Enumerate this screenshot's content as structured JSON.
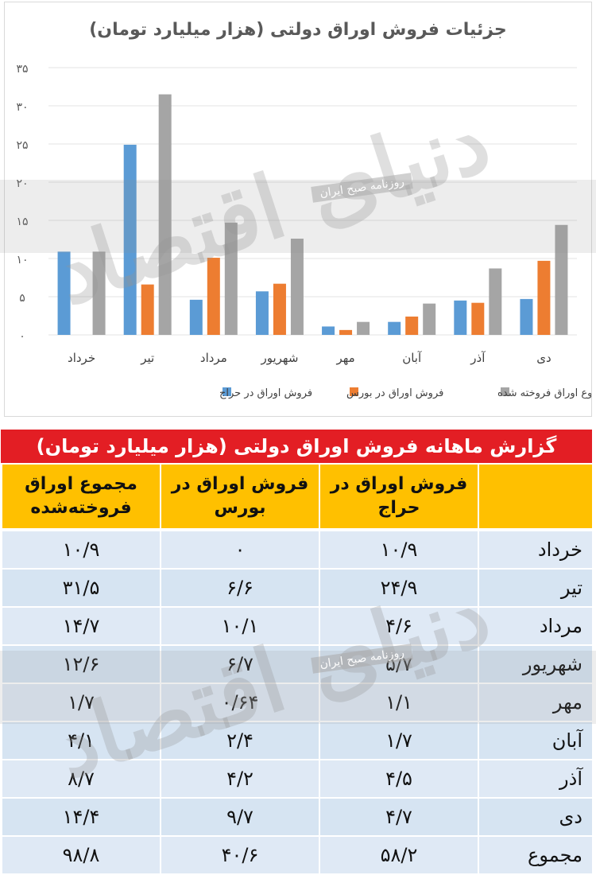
{
  "chart_data": {
    "type": "bar",
    "title": "جزئیات فروش اوراق دولتی  (هزار میلیارد تومان)",
    "categories": [
      "خرداد",
      "تیر",
      "مرداد",
      "شهریور",
      "مهر",
      "آبان",
      "آذر",
      "دی"
    ],
    "series": [
      {
        "name": "فروش اوراق در حراج",
        "color": "#5b9bd5",
        "values": [
          10.9,
          24.9,
          4.6,
          5.7,
          1.1,
          1.7,
          4.5,
          4.7
        ]
      },
      {
        "name": "فروش اوراق در بورس",
        "color": "#ed7d31",
        "values": [
          0,
          6.6,
          10.1,
          6.7,
          0.64,
          2.4,
          4.2,
          9.7
        ]
      },
      {
        "name": "مجموع اوراق فروخته شده",
        "color": "#a5a5a5",
        "values": [
          10.9,
          31.5,
          14.7,
          12.6,
          1.7,
          4.1,
          8.7,
          14.4
        ]
      }
    ],
    "yticks": [
      "۰",
      "۵",
      "۱۰",
      "۱۵",
      "۲۰",
      "۲۵",
      "۳۰",
      "۳۵"
    ],
    "ylim": [
      0,
      35
    ],
    "grid": true,
    "legend_position": "bottom"
  },
  "table": {
    "title": "گزارش ماهانه فروش اوراق دولتی (هزار میلیارد تومان)",
    "headers": [
      "",
      "فروش اوراق در حراج",
      "فروش اوراق در بورس",
      "مجموع اوراق فروخته‌شده"
    ],
    "rows": [
      [
        "خرداد",
        "۱۰/۹",
        "۰",
        "۱۰/۹"
      ],
      [
        "تیر",
        "۲۴/۹",
        "۶/۶",
        "۳۱/۵"
      ],
      [
        "مرداد",
        "۴/۶",
        "۱۰/۱",
        "۱۴/۷"
      ],
      [
        "شهریور",
        "۵/۷",
        "۶/۷",
        "۱۲/۶"
      ],
      [
        "مهر",
        "۱/۱",
        "۰/۶۴",
        "۱/۷"
      ],
      [
        "آبان",
        "۱/۷",
        "۲/۴",
        "۴/۱"
      ],
      [
        "آذر",
        "۴/۵",
        "۴/۲",
        "۸/۷"
      ],
      [
        "دی",
        "۴/۷",
        "۹/۷",
        "۱۴/۴"
      ],
      [
        "مجموع",
        "۵۸/۲",
        "۴۰/۶",
        "۹۸/۸"
      ]
    ]
  },
  "watermark": {
    "logo_text": "دنیای اقتصاد",
    "caption": "روزنامه صبح ایران"
  }
}
